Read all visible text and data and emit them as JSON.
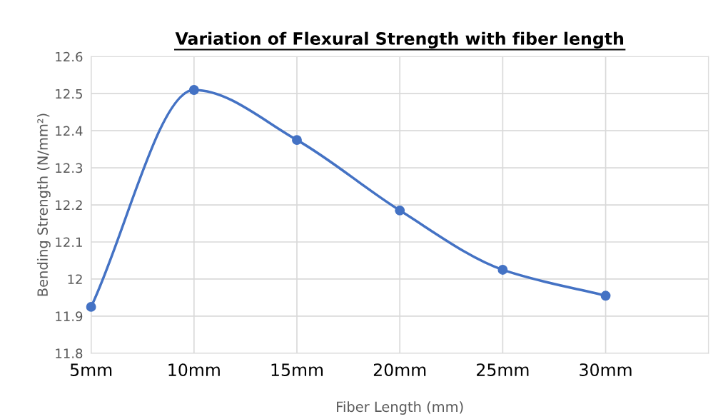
{
  "chart_data": {
    "type": "line",
    "title": "Variation of Flexural Strength with fiber length",
    "xlabel": "Fiber Length (mm)",
    "ylabel": "Bending Strength (N/mm²)",
    "categories": [
      "5mm",
      "10mm",
      "15mm",
      "20mm",
      "25mm",
      "30mm",
      null
    ],
    "series": [
      {
        "color": "#4472c4",
        "values": [
          11.925,
          12.51,
          12.375,
          12.185,
          12.025,
          11.955,
          null
        ]
      }
    ],
    "ylim": [
      11.8,
      12.6
    ],
    "yticks": [
      11.8,
      11.9,
      12,
      12.1,
      12.2,
      12.3,
      12.4,
      12.5,
      12.6
    ],
    "grid": true,
    "marker": "circle",
    "line_style": "solid"
  }
}
